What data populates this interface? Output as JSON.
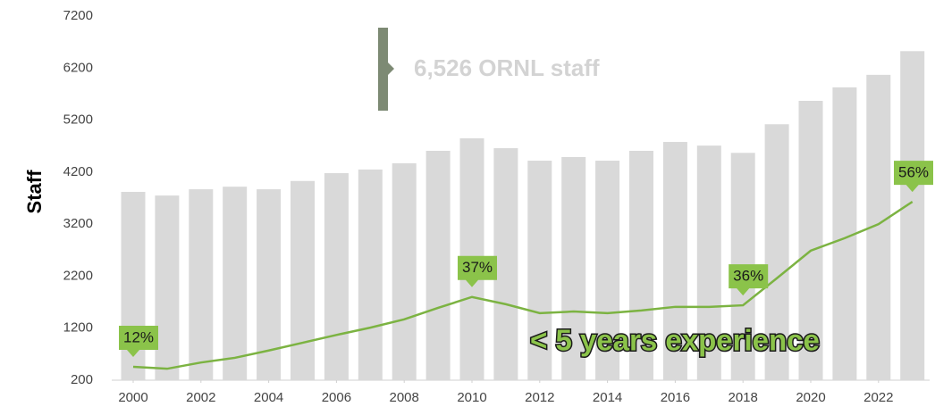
{
  "chart_data": {
    "type": "bar",
    "y_label": "Staff",
    "x": [
      2000,
      2001,
      2002,
      2003,
      2004,
      2005,
      2006,
      2007,
      2008,
      2009,
      2010,
      2011,
      2012,
      2013,
      2014,
      2015,
      2016,
      2017,
      2018,
      2019,
      2020,
      2021,
      2022,
      2023
    ],
    "series": [
      {
        "type": "bar",
        "color": "#d9d9d9",
        "values": [
          3820,
          3750,
          3870,
          3920,
          3870,
          4030,
          4180,
          4250,
          4370,
          4610,
          4850,
          4660,
          4420,
          4490,
          4420,
          4610,
          4780,
          4710,
          4570,
          5120,
          5570,
          5830,
          6070,
          6526
        ]
      },
      {
        "type": "line",
        "color": "#7cb342",
        "values": [
          457,
          420,
          540,
          630,
          770,
          920,
          1070,
          1210,
          1370,
          1590,
          1800,
          1660,
          1490,
          1520,
          1490,
          1540,
          1610,
          1610,
          1640,
          2160,
          2690,
          2930,
          3200,
          3630
        ]
      }
    ],
    "ylim": [
      200,
      7200
    ],
    "yticks": [
      200,
      1200,
      2200,
      3200,
      4200,
      5200,
      6200,
      7200
    ],
    "xticks": [
      2000,
      2002,
      2004,
      2006,
      2008,
      2010,
      2012,
      2014,
      2016,
      2018,
      2020,
      2022
    ],
    "annotations": [
      {
        "text": "6,526 ORNL staff"
      },
      {
        "text": "< 5 years experience"
      }
    ],
    "callouts": [
      {
        "text": "12%",
        "x": 2000
      },
      {
        "text": "37%",
        "x": 2010
      },
      {
        "text": "36%",
        "x": 2018
      },
      {
        "text": "56%",
        "x": 2023
      }
    ],
    "callout_color": "#8bc34a",
    "grid": false
  }
}
